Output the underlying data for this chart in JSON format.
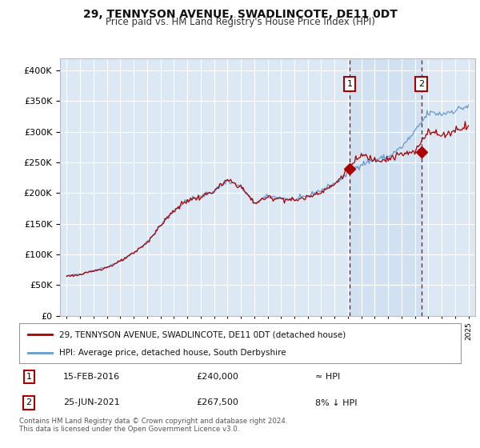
{
  "title": "29, TENNYSON AVENUE, SWADLINCOTE, DE11 0DT",
  "subtitle": "Price paid vs. HM Land Registry's House Price Index (HPI)",
  "ylim": [
    0,
    420000
  ],
  "yticks": [
    0,
    50000,
    100000,
    150000,
    200000,
    250000,
    300000,
    350000,
    400000
  ],
  "xlim_left": 1994.5,
  "xlim_right": 2025.5,
  "plot_bg": "#dce9f5",
  "red_line_color": "#aa0000",
  "blue_line_color": "#6699cc",
  "shade_color": "#ccddf0",
  "grid_color": "#ffffff",
  "sale1_x": 2016.12,
  "sale1_y": 240000,
  "sale2_x": 2021.48,
  "sale2_y": 267500,
  "legend_red": "29, TENNYSON AVENUE, SWADLINCOTE, DE11 0DT (detached house)",
  "legend_blue": "HPI: Average price, detached house, South Derbyshire",
  "note1_label": "1",
  "note1_date": "15-FEB-2016",
  "note1_price": "£240,000",
  "note1_relation": "≈ HPI",
  "note2_label": "2",
  "note2_date": "25-JUN-2021",
  "note2_price": "£267,500",
  "note2_relation": "8% ↓ HPI",
  "footer": "Contains HM Land Registry data © Crown copyright and database right 2024.\nThis data is licensed under the Open Government Licence v3.0."
}
